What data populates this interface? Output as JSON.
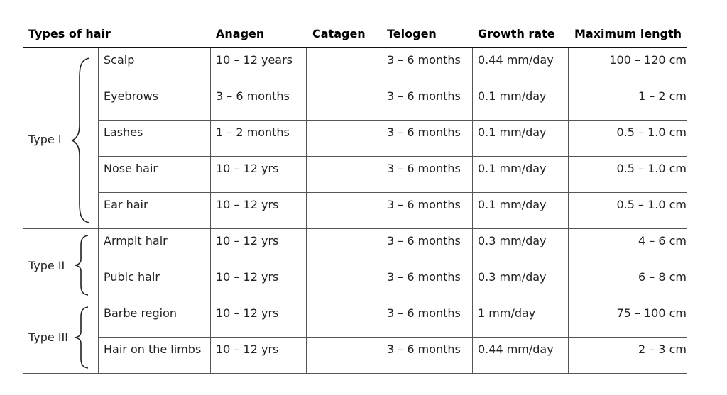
{
  "table": {
    "headers": {
      "types": "Types of hair",
      "anagen": "Anagen",
      "catagen": "Catagen",
      "telogen": "Telogen",
      "growth": "Growth rate",
      "maxlen": "Maximum length"
    },
    "groups": [
      {
        "label": "Type I"
      },
      {
        "label": "Type II"
      },
      {
        "label": "Type III"
      }
    ],
    "rows": [
      {
        "name": "Scalp",
        "anagen": "10 – 12 years",
        "catagen": "",
        "telogen": "3 – 6 months",
        "growth": "0.44 mm/day",
        "maxlen": "100 – 120 cm"
      },
      {
        "name": "Eyebrows",
        "anagen": "3 – 6 months",
        "catagen": "",
        "telogen": "3 – 6 months",
        "growth": "0.1 mm/day",
        "maxlen": "1 – 2 cm"
      },
      {
        "name": "Lashes",
        "anagen": "1 – 2 months",
        "catagen": "",
        "telogen": "3 – 6 months",
        "growth": "0.1 mm/day",
        "maxlen": "0.5 – 1.0 cm"
      },
      {
        "name": "Nose hair",
        "anagen": "10 – 12 yrs",
        "catagen": "",
        "telogen": "3 – 6 months",
        "growth": "0.1 mm/day",
        "maxlen": "0.5 – 1.0 cm"
      },
      {
        "name": "Ear hair",
        "anagen": "10 – 12 yrs",
        "catagen": "",
        "telogen": "3 – 6 months",
        "growth": "0.1 mm/day",
        "maxlen": "0.5 – 1.0 cm"
      },
      {
        "name": "Armpit hair",
        "anagen": "10 – 12 yrs",
        "catagen": "",
        "telogen": "3 – 6 months",
        "growth": "0.3 mm/day",
        "maxlen": "4 – 6 cm"
      },
      {
        "name": "Pubic hair",
        "anagen": "10 – 12 yrs",
        "catagen": "",
        "telogen": "3 – 6 months",
        "growth": "0.3 mm/day",
        "maxlen": "6 – 8 cm"
      },
      {
        "name": "Barbe region",
        "anagen": "10 – 12 yrs",
        "catagen": "",
        "telogen": "3 – 6 months",
        "growth": "1 mm/day",
        "maxlen": "75 – 100 cm"
      },
      {
        "name": "Hair on the limbs",
        "anagen": "10 – 12 yrs",
        "catagen": "",
        "telogen": "3 – 6 months",
        "growth": "0.44 mm/day",
        "maxlen": "2 – 3 cm"
      }
    ]
  }
}
